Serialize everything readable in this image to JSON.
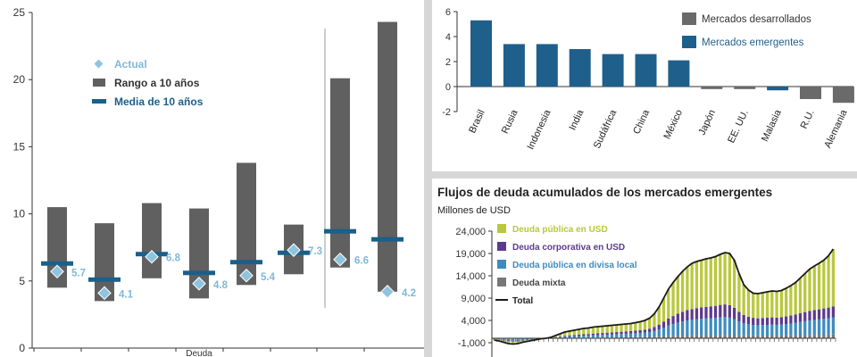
{
  "chart_data": [
    {
      "type": "bar",
      "variant": "range-with-markers",
      "ylim": [
        0,
        25
      ],
      "yticks": [
        "0",
        "5",
        "10",
        "15",
        "20",
        "25"
      ],
      "legend": {
        "actual_label": "Actual",
        "range_label": "Rango a 10 años",
        "mean_label": "Media de 10 años",
        "placement": "top-left"
      },
      "categories": [
        "",
        "",
        "",
        "",
        "",
        "",
        "",
        ""
      ],
      "range_low": [
        4.5,
        3.5,
        5.2,
        3.7,
        4.7,
        5.5,
        6.0,
        4.2
      ],
      "range_high": [
        10.5,
        9.3,
        10.8,
        10.4,
        13.8,
        9.2,
        20.1,
        24.3
      ],
      "mean": [
        6.3,
        5.1,
        7.0,
        5.6,
        6.4,
        7.1,
        8.7,
        8.1
      ],
      "actual": [
        5.7,
        4.1,
        6.8,
        4.8,
        5.4,
        7.3,
        6.6,
        4.2
      ],
      "actual_labels": [
        "5.7",
        "4.1",
        "6.8",
        "4.8",
        "5.4",
        "7.3",
        "6.6",
        "4.2"
      ],
      "partial_category_text": [
        "Deuda"
      ],
      "colors": {
        "range": "#606060",
        "mean": "#1b5f8a",
        "actual": "#8fc3de",
        "actual_label": "#7fb9d8",
        "axis": "#333333"
      }
    },
    {
      "type": "bar",
      "ylim": [
        -2,
        6
      ],
      "yticks": [
        "-2",
        "0",
        "2",
        "4",
        "6"
      ],
      "categories": [
        "Brasil",
        "Rusia",
        "Indonesia",
        "India",
        "Sudáfrica",
        "China",
        "México",
        "Japón",
        "EE. UU.",
        "Malasia",
        "R.U.",
        "Alemania"
      ],
      "values": [
        5.3,
        3.4,
        3.4,
        3.0,
        2.6,
        2.6,
        2.1,
        -0.2,
        -0.2,
        -0.3,
        -1.0,
        -1.3
      ],
      "group": [
        "em",
        "em",
        "em",
        "em",
        "em",
        "em",
        "em",
        "dev",
        "dev",
        "em",
        "dev",
        "dev"
      ],
      "legend": {
        "developed_label": "Mercados desarrollados",
        "emerging_label": "Mercados emergentes",
        "placement": "top-right"
      },
      "colors": {
        "emerging": "#1f5f8b",
        "developed": "#6a6a6a"
      }
    },
    {
      "type": "bar",
      "variant": "stacked-with-line",
      "title": "Flujos de deuda acumulados de los mercados emergentes",
      "subtitle": "Millones de USD",
      "ylim": [
        -1000,
        24000
      ],
      "yticks": [
        "-1,000",
        "4,000",
        "9,000",
        "14,000",
        "19,000",
        "24,000"
      ],
      "series": [
        {
          "name": "Deuda pública en USD",
          "color": "#b9c83c"
        },
        {
          "name": "Deuda corporativa en USD",
          "color": "#5d3a8e"
        },
        {
          "name": "Deuda pública en divisa local",
          "color": "#3d8cbf"
        },
        {
          "name": "Deuda mixta",
          "color": "#777777"
        }
      ],
      "line": {
        "name": "Total",
        "color": "#1a1a1a"
      },
      "total": [
        -400,
        -600,
        -900,
        -1200,
        -1300,
        -1200,
        -900,
        -700,
        -500,
        -300,
        -100,
        0,
        200,
        600,
        1000,
        1400,
        1600,
        1800,
        2000,
        2200,
        2300,
        2500,
        2600,
        2700,
        2800,
        2900,
        3000,
        3100,
        3200,
        3300,
        3500,
        3700,
        4000,
        4500,
        5500,
        7000,
        9000,
        11000,
        12500,
        13800,
        15000,
        16000,
        16800,
        17200,
        17500,
        17800,
        18000,
        18300,
        18800,
        19200,
        19000,
        17500,
        14500,
        12000,
        10800,
        10100,
        10000,
        10200,
        10400,
        10600,
        10500,
        10700,
        11200,
        11800,
        12500,
        13500,
        14500,
        15500,
        16200,
        16800,
        17500,
        18500,
        20000
      ],
      "mixed": [
        -50,
        -80,
        -120,
        -150,
        -150,
        -130,
        -100,
        -80,
        -60,
        -40,
        -20,
        0,
        20,
        40,
        60,
        80,
        90,
        100,
        110,
        120,
        130,
        140,
        150,
        160,
        170,
        180,
        190,
        200,
        210,
        220,
        230,
        250,
        270,
        300,
        330,
        360,
        400,
        440,
        480,
        520,
        560,
        600,
        630,
        650,
        670,
        690,
        700,
        710,
        720,
        730,
        720,
        700,
        680,
        660,
        640,
        630,
        620,
        610,
        600,
        600,
        610,
        620,
        640,
        660,
        680,
        700,
        720,
        740,
        760,
        780,
        800,
        820,
        850
      ],
      "local": [
        -100,
        -150,
        -250,
        -350,
        -400,
        -380,
        -300,
        -250,
        -200,
        -150,
        -100,
        -50,
        0,
        80,
        150,
        250,
        300,
        350,
        400,
        450,
        480,
        520,
        560,
        600,
        640,
        680,
        720,
        760,
        800,
        850,
        900,
        950,
        1000,
        1100,
        1300,
        1600,
        2000,
        2400,
        2700,
        3000,
        3200,
        3400,
        3500,
        3600,
        3700,
        3750,
        3800,
        3850,
        3950,
        4000,
        3900,
        3600,
        3100,
        2700,
        2500,
        2350,
        2300,
        2350,
        2400,
        2450,
        2400,
        2450,
        2550,
        2650,
        2800,
        2950,
        3100,
        3250,
        3350,
        3450,
        3550,
        3650,
        3800
      ],
      "corporate": [
        -50,
        -80,
        -130,
        -180,
        -200,
        -190,
        -150,
        -120,
        -100,
        -70,
        -40,
        0,
        40,
        100,
        150,
        200,
        230,
        260,
        300,
        330,
        350,
        380,
        400,
        420,
        440,
        460,
        480,
        500,
        520,
        540,
        570,
        600,
        650,
        750,
        900,
        1100,
        1350,
        1600,
        1800,
        2000,
        2150,
        2300,
        2400,
        2500,
        2550,
        2600,
        2650,
        2700,
        2800,
        2850,
        2800,
        2550,
        2150,
        1850,
        1700,
        1600,
        1550,
        1580,
        1600,
        1620,
        1600,
        1630,
        1700,
        1780,
        1860,
        1950,
        2050,
        2150,
        2200,
        2250,
        2320,
        2400,
        2500
      ],
      "public_usd": [
        -200,
        -290,
        -400,
        -520,
        -550,
        -500,
        -350,
        -250,
        -140,
        -40,
        60,
        50,
        140,
        380,
        640,
        870,
        980,
        1090,
        1190,
        1300,
        1340,
        1460,
        1490,
        1520,
        1550,
        1580,
        1610,
        1640,
        1670,
        1690,
        1800,
        1900,
        2080,
        2350,
        2970,
        3940,
        5250,
        6560,
        7520,
        8280,
        9090,
        9700,
        10270,
        10450,
        10580,
        10760,
        10850,
        11040,
        11330,
        11620,
        11580,
        10650,
        8570,
        6790,
        5960,
        5520,
        5530,
        5660,
        5800,
        5930,
        5890,
        6000,
        6310,
        6710,
        7160,
        7900,
        8630,
        9360,
        9890,
        10320,
        10830,
        11630,
        12850
      ],
      "colors": {
        "zero_line": "#333333"
      }
    }
  ]
}
